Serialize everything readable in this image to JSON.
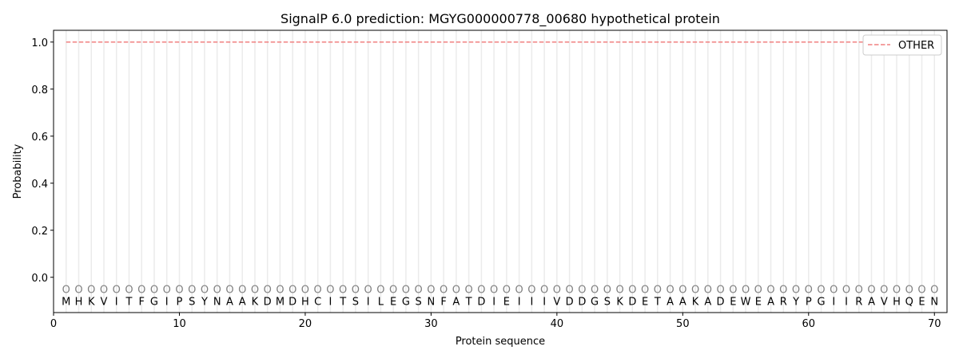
{
  "chart_data": {
    "type": "line",
    "title": "SignalP 6.0 prediction: MGYG000000778_00680 hypothetical protein",
    "xlabel": "Protein sequence",
    "ylabel": "Probability",
    "xlim": [
      0,
      71
    ],
    "ylim": [
      -0.15,
      1.05
    ],
    "xticks": [
      0,
      10,
      20,
      30,
      40,
      50,
      60,
      70
    ],
    "yticks": [
      0.0,
      0.2,
      0.4,
      0.6,
      0.8,
      1.0
    ],
    "ytick_labels": [
      "0.0",
      "0.2",
      "0.4",
      "0.6",
      "0.8",
      "1.0"
    ],
    "sequence": [
      "M",
      "H",
      "K",
      "V",
      "I",
      "T",
      "F",
      "G",
      "I",
      "P",
      "S",
      "Y",
      "N",
      "A",
      "A",
      "K",
      "D",
      "M",
      "D",
      "H",
      "C",
      "I",
      "T",
      "S",
      "I",
      "L",
      "E",
      "G",
      "S",
      "N",
      "F",
      "A",
      "T",
      "D",
      "I",
      "E",
      "I",
      "I",
      "I",
      "V",
      "D",
      "D",
      "G",
      "S",
      "K",
      "D",
      "E",
      "T",
      "A",
      "A",
      "K",
      "A",
      "D",
      "E",
      "W",
      "E",
      "A",
      "R",
      "Y",
      "P",
      "G",
      "I",
      "I",
      "R",
      "A",
      "V",
      "H",
      "Q",
      "E",
      "N"
    ],
    "predicted_label": "O",
    "series": [
      {
        "name": "OTHER",
        "color": "#f08080",
        "style": "dashed",
        "x_start": 1,
        "x_end": 70,
        "value": 1.0
      }
    ],
    "legend": {
      "position": "top-right"
    },
    "grid": "vertical lines at each residue"
  }
}
